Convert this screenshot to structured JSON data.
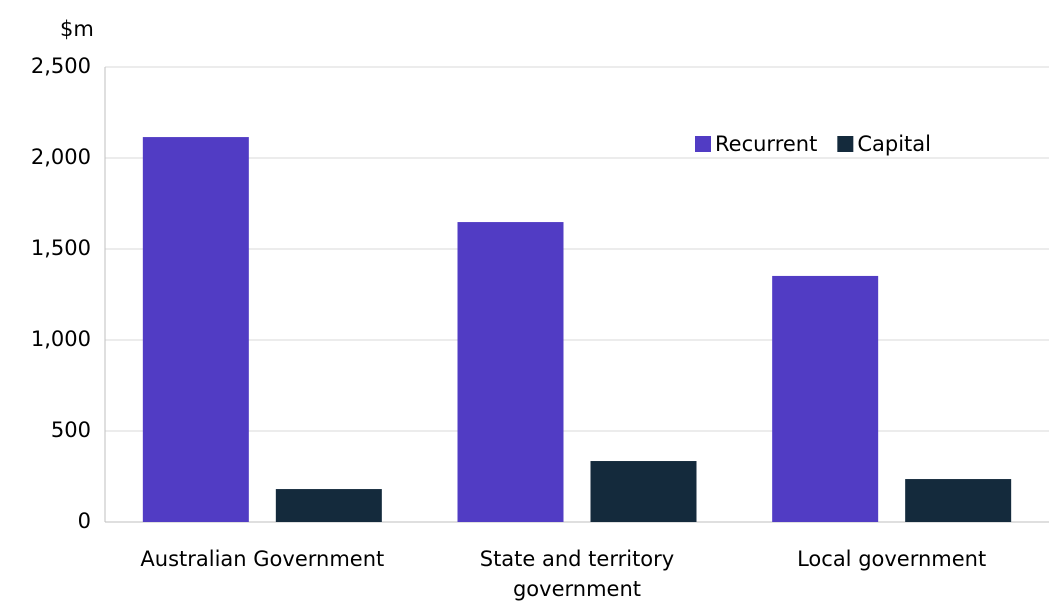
{
  "chart_data": {
    "type": "bar",
    "y_axis_label": "$m",
    "categories": [
      "Australian Government",
      "State and territory government",
      "Local government"
    ],
    "series": [
      {
        "name": "Recurrent",
        "color": "#513cc4",
        "values": [
          2115,
          1648,
          1352
        ]
      },
      {
        "name": "Capital",
        "color": "#142a3c",
        "values": [
          181,
          335,
          236
        ]
      }
    ],
    "ylim": [
      0,
      2500
    ],
    "yticks": [
      0,
      {
        "value": 500,
        "label": "500"
      },
      {
        "value": 1000,
        "label": "1,000"
      },
      {
        "value": 1500,
        "label": "1,500"
      },
      {
        "value": 2000,
        "label": "2,000"
      },
      {
        "value": 2500,
        "label": "2,500"
      }
    ],
    "grid": true,
    "legend": "top-right"
  }
}
